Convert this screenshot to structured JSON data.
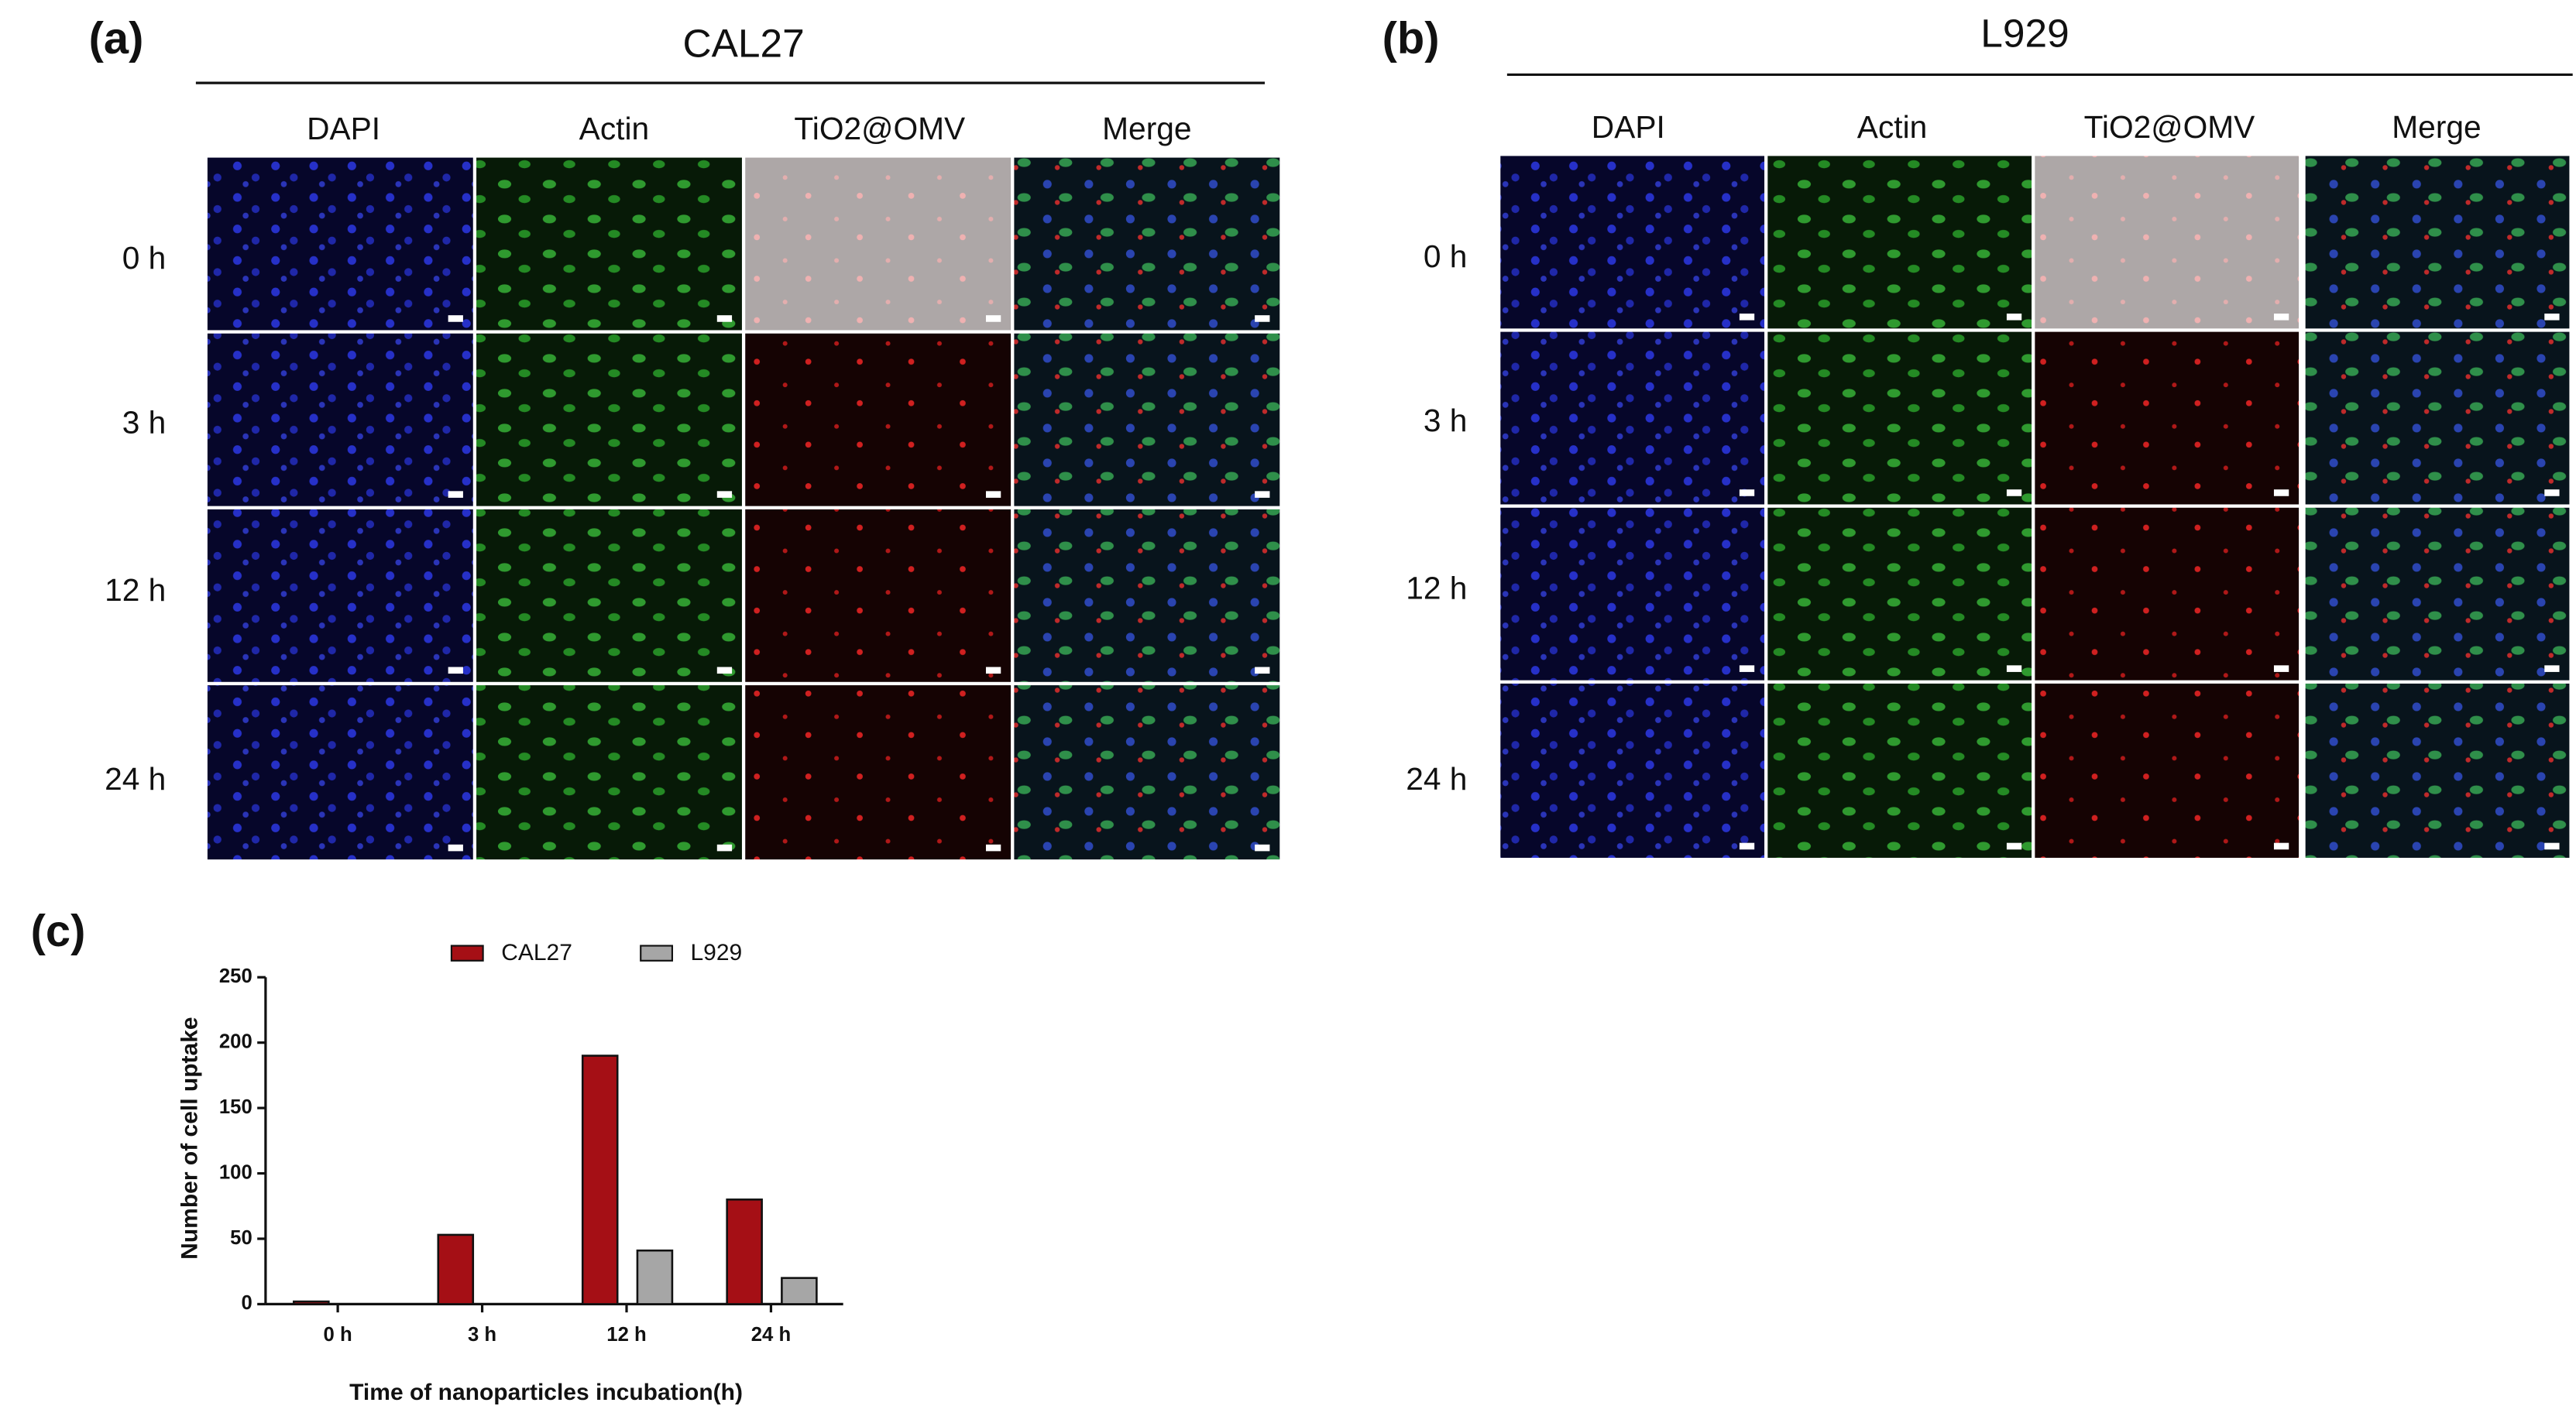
{
  "panels": [
    {
      "label": "(a)",
      "title": "CAL27",
      "columns": [
        "DAPI",
        "Actin",
        "TiO2@OMV",
        "Merge"
      ],
      "rows": [
        "0 h",
        "3 h",
        "12 h",
        "24 h"
      ]
    },
    {
      "label": "(b)",
      "title": "L929",
      "columns": [
        "DAPI",
        "Actin",
        "TiO2@OMV",
        "Merge"
      ],
      "rows": [
        "0 h",
        "3 h",
        "12 h",
        "24 h"
      ]
    }
  ],
  "chart_data": {
    "type": "bar",
    "label": "(c)",
    "categories": [
      "0 h",
      "3 h",
      "12 h",
      "24 h"
    ],
    "series": [
      {
        "name": "CAL27",
        "color": "#a50f15",
        "values": [
          2,
          53,
          190,
          80
        ]
      },
      {
        "name": "L929",
        "color": "#a6a6a6",
        "values": [
          0,
          0,
          41,
          20
        ]
      }
    ],
    "xlabel": "Time of nanoparticles incubation(h)",
    "ylabel": "Number of cell uptake",
    "ylim": [
      0,
      250
    ],
    "yticks": [
      0,
      50,
      100,
      150,
      200,
      250
    ]
  }
}
